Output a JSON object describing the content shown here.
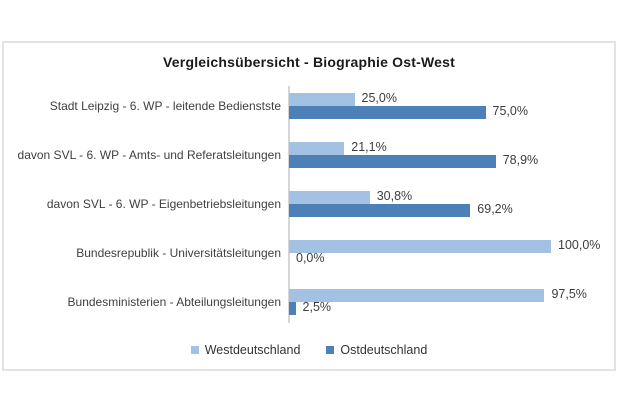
{
  "title": "Vergleichsübersicht - Biographie Ost-West",
  "colors": {
    "west": "#A2C1E3",
    "ost": "#4E80B8",
    "frame_border": "#E3E3E3",
    "axis_line": "#D6D6D6",
    "title_text": "#1A1A1A",
    "label_text": "#404040"
  },
  "legend": [
    {
      "label": "Westdeutschland",
      "color": "#A2C1E3"
    },
    {
      "label": "Ostdeutschland",
      "color": "#4E80B8"
    }
  ],
  "chart_data": {
    "type": "bar",
    "orientation": "horizontal",
    "title": "Vergleichsübersicht - Biographie Ost-West",
    "categories": [
      "Stadt Leipzig - 6. WP - leitende Bedienstste",
      "davon SVL - 6. WP - Amts- und Referatsleitungen",
      "davon SVL - 6. WP - Eigenbetriebsleitungen",
      "Bundesrepublik - Universitätsleitungen",
      "Bundesministerien - Abteilungsleitungen"
    ],
    "series": [
      {
        "name": "Westdeutschland",
        "color": "#A2C1E3",
        "values": [
          25.0,
          21.1,
          30.8,
          100.0,
          97.5
        ]
      },
      {
        "name": "Ostdeutschland",
        "color": "#4E80B8",
        "values": [
          75.0,
          78.9,
          69.2,
          0.0,
          2.5
        ]
      }
    ],
    "value_labels": [
      [
        "25,0%",
        "75,0%"
      ],
      [
        "21,1%",
        "78,9%"
      ],
      [
        "30,8%",
        "69,2%"
      ],
      [
        "100,0%",
        "0,0%"
      ],
      [
        "97,5%",
        "2,5%"
      ]
    ],
    "xlim": [
      0,
      100
    ],
    "unit": "%",
    "grid": false,
    "legend_position": "bottom"
  }
}
